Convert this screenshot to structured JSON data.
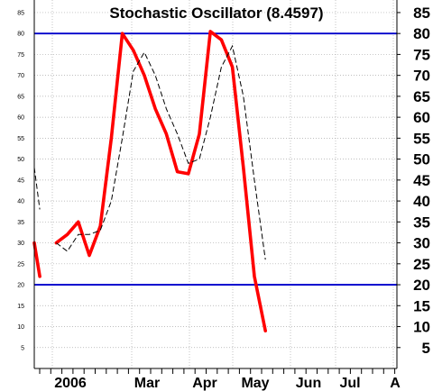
{
  "chart_data": {
    "type": "line",
    "title": "Stochastic Oscillator (8.4597)",
    "ylim": [
      0,
      88
    ],
    "yticks": [
      5,
      10,
      15,
      20,
      25,
      30,
      35,
      40,
      45,
      50,
      55,
      60,
      65,
      70,
      75,
      80,
      85
    ],
    "yticks_left": [
      "5",
      "10",
      "15",
      "20",
      "25",
      "30",
      "35",
      "40",
      "45",
      "50",
      "55",
      "60",
      "65",
      "70",
      "75",
      "80",
      "85"
    ],
    "yticks_right": [
      "5",
      "10",
      "15",
      "20",
      "25",
      "30",
      "35",
      "40",
      "45",
      "50",
      "55",
      "60",
      "65",
      "70",
      "75",
      "80",
      "85"
    ],
    "xlabels": [
      "2006",
      "Mar",
      "Apr",
      "May",
      "Jun",
      "Jul",
      "A"
    ],
    "reference_lines": [
      80,
      20
    ],
    "grid": true,
    "colors": {
      "percent_k": "#ff0000",
      "percent_d": "#000000",
      "reference": "#0000cc",
      "grid": "#aaaaaa"
    },
    "x": [
      0,
      0.5,
      1,
      2,
      3,
      4,
      5,
      6,
      7,
      8,
      9,
      10,
      11,
      12,
      13,
      14,
      15,
      16,
      17,
      18,
      19,
      20,
      21,
      22,
      23,
      24,
      25
    ],
    "series": [
      {
        "style": "thick-red",
        "values": [
          30,
          22,
          null,
          30,
          32,
          35,
          27,
          34,
          55,
          80,
          76,
          70,
          62,
          56,
          47,
          46.5,
          56,
          80.5,
          78.5,
          72,
          48,
          22,
          9,
          null,
          null,
          null,
          null
        ]
      },
      {
        "style": "thin-black-dashed",
        "values": [
          48,
          38,
          null,
          30,
          28,
          32,
          32,
          33,
          40,
          55,
          71,
          75.5,
          70,
          62,
          56,
          49,
          50,
          60,
          72,
          77,
          65,
          45,
          26,
          null,
          null,
          null,
          null
        ]
      }
    ]
  }
}
